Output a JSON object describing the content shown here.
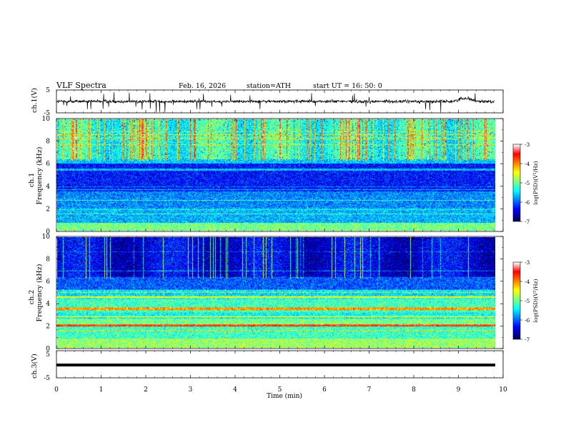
{
  "header": {
    "title": "VLF  Spectra",
    "date": "Feb. 16, 2026",
    "station": "station=ATH",
    "start_ut": "start  UT  =   16: 50: 0"
  },
  "chart_data": [
    {
      "type": "line",
      "name": "ch1-waveform",
      "ylabel": "ch.1(V)",
      "ylim": [
        -5,
        5
      ],
      "yticks": [
        "5",
        "-5"
      ],
      "xlim": [
        0,
        10
      ]
    },
    {
      "type": "heatmap",
      "name": "ch1-spectrogram",
      "ylabel": "ch.1\nFrequency (kHz)",
      "ylabel_lines": [
        "ch.1",
        "Frequency  (kHz)"
      ],
      "ylim": [
        0,
        10
      ],
      "yticks": [
        "0",
        "2",
        "4",
        "6",
        "8",
        "10"
      ],
      "xlim": [
        0,
        10
      ],
      "colorbar": {
        "label": "log(PSD)(V²/Hz)",
        "range": [
          -7,
          -3
        ],
        "ticks": [
          "-3",
          "-4",
          "-5",
          "-6",
          "-7"
        ]
      }
    },
    {
      "type": "heatmap",
      "name": "ch2-spectrogram",
      "ylabel_lines": [
        "ch.2",
        "Frequency  (kHz)"
      ],
      "ylim": [
        0,
        10
      ],
      "yticks": [
        "0",
        "2",
        "4",
        "6",
        "8",
        "10"
      ],
      "xlim": [
        0,
        10
      ],
      "colorbar": {
        "label": "log(PSD)(V²/Hz)",
        "range": [
          -7,
          -3
        ],
        "ticks": [
          "-3",
          "-4",
          "-5",
          "-6",
          "-7"
        ]
      }
    },
    {
      "type": "line",
      "name": "ch3-waveform",
      "ylabel": "ch.3(V)",
      "ylim": [
        -5,
        5
      ],
      "yticks": [
        "5",
        "-5"
      ],
      "xlim": [
        0,
        10
      ]
    }
  ],
  "x_axis": {
    "label": "Time  (min)",
    "ticks": [
      "0",
      "1",
      "2",
      "3",
      "4",
      "5",
      "6",
      "7",
      "8",
      "9",
      "10"
    ],
    "range": [
      0,
      10
    ]
  },
  "colors": {
    "jet": [
      "#000000",
      "#00007f",
      "#0000ff",
      "#0080ff",
      "#00ffff",
      "#80ff80",
      "#ffff00",
      "#ff8000",
      "#ff0000",
      "#ffffff"
    ]
  }
}
